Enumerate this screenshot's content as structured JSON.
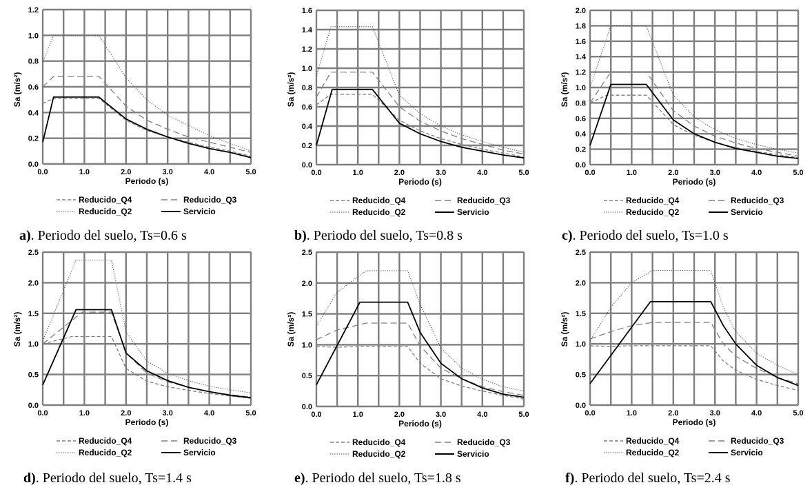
{
  "figure": {
    "xlabel": "Periodo (s)",
    "ylabel": "Sa (m/s²)",
    "caption_middle": "Periodo del suelo, Ts=",
    "caption_unit": " s"
  },
  "styles": {
    "grid_color": "#7f7f7f",
    "series": {
      "Reducido_Q4": {
        "color": "#7f7f7f",
        "dash": "5,3",
        "width": 1.3
      },
      "Reducido_Q3": {
        "color": "#7f7f7f",
        "dash": "9,5",
        "width": 1.3
      },
      "Reducido_Q2": {
        "color": "#555555",
        "dash": "1.2,2",
        "width": 1.1
      },
      "Servicio": {
        "color": "#000000",
        "dash": "",
        "width": 1.8
      }
    }
  },
  "chart_data": [
    {
      "type": "line",
      "panel": "a)",
      "ts": "0.6",
      "xlabel": "Periodo (s)",
      "ylabel": "Sa (m/s²)",
      "xlim": [
        0,
        5
      ],
      "ylim": [
        0,
        1.2
      ],
      "xticks": [
        "0.0",
        "1.0",
        "2.0",
        "3.0",
        "4.0",
        "5.0"
      ],
      "yticks": [
        "0.0",
        "0.2",
        "0.4",
        "0.6",
        "0.8",
        "1.0",
        "1.2"
      ],
      "ytick_values": [
        0,
        0.2,
        0.4,
        0.6,
        0.8,
        1.0,
        1.2
      ],
      "grid": true,
      "legend": "bottom",
      "series": [
        {
          "name": "Reducido_Q4",
          "x": [
            0,
            0.26,
            1.35,
            2.0,
            2.5,
            3.0,
            3.5,
            4.0,
            4.5,
            5.0
          ],
          "y": [
            0.47,
            0.51,
            0.51,
            0.34,
            0.26,
            0.21,
            0.17,
            0.13,
            0.1,
            0.06
          ]
        },
        {
          "name": "Reducido_Q3",
          "x": [
            0,
            0.26,
            1.35,
            2.0,
            2.5,
            3.0,
            3.5,
            4.0,
            4.5,
            5.0
          ],
          "y": [
            0.6,
            0.68,
            0.68,
            0.45,
            0.34,
            0.27,
            0.21,
            0.17,
            0.13,
            0.09
          ]
        },
        {
          "name": "Reducido_Q2",
          "x": [
            0,
            0.26,
            1.35,
            2.0,
            2.5,
            3.0,
            3.5,
            4.0,
            4.5,
            5.0
          ],
          "y": [
            0.79,
            1.0,
            1.0,
            0.67,
            0.5,
            0.38,
            0.3,
            0.22,
            0.16,
            0.1
          ]
        },
        {
          "name": "Servicio",
          "x": [
            0,
            0.26,
            1.35,
            2.0,
            2.5,
            3.0,
            3.5,
            4.0,
            4.5,
            5.0
          ],
          "y": [
            0.17,
            0.52,
            0.52,
            0.35,
            0.27,
            0.21,
            0.16,
            0.12,
            0.09,
            0.05
          ]
        }
      ]
    },
    {
      "type": "line",
      "panel": "b)",
      "ts": "0.8",
      "xlabel": "Periodo (s)",
      "ylabel": "Sa (m/s²)",
      "xlim": [
        0,
        5
      ],
      "ylim": [
        0,
        1.6
      ],
      "xticks": [
        "0.0",
        "1.0",
        "2.0",
        "3.0",
        "4.0",
        "5.0"
      ],
      "yticks": [
        "0.0",
        "0.2",
        "0.4",
        "0.6",
        "0.8",
        "1.0",
        "1.2",
        "1.4",
        "1.6"
      ],
      "ytick_values": [
        0,
        0.2,
        0.4,
        0.6,
        0.8,
        1.0,
        1.2,
        1.4,
        1.6
      ],
      "grid": true,
      "legend": "bottom",
      "series": [
        {
          "name": "Reducido_Q4",
          "x": [
            0,
            0.35,
            1.35,
            2.0,
            2.5,
            3.0,
            3.5,
            4.0,
            4.5,
            5.0
          ],
          "y": [
            0.62,
            0.73,
            0.73,
            0.46,
            0.35,
            0.27,
            0.21,
            0.16,
            0.12,
            0.08
          ]
        },
        {
          "name": "Reducido_Q3",
          "x": [
            0,
            0.35,
            1.35,
            2.0,
            2.5,
            3.0,
            3.5,
            4.0,
            4.5,
            5.0
          ],
          "y": [
            0.7,
            0.96,
            0.96,
            0.6,
            0.45,
            0.35,
            0.27,
            0.21,
            0.15,
            0.11
          ]
        },
        {
          "name": "Reducido_Q2",
          "x": [
            0,
            0.35,
            1.35,
            2.0,
            2.5,
            3.0,
            3.5,
            4.0,
            4.5,
            5.0
          ],
          "y": [
            0.92,
            1.43,
            1.43,
            0.72,
            0.53,
            0.4,
            0.31,
            0.24,
            0.18,
            0.13
          ]
        },
        {
          "name": "Servicio",
          "x": [
            0,
            0.38,
            1.35,
            2.0,
            2.5,
            3.0,
            3.5,
            4.0,
            4.5,
            5.0
          ],
          "y": [
            0.2,
            0.78,
            0.78,
            0.43,
            0.32,
            0.24,
            0.18,
            0.14,
            0.1,
            0.07
          ]
        }
      ]
    },
    {
      "type": "line",
      "panel": "c)",
      "ts": "1.0",
      "xlabel": "Periodo (s)",
      "ylabel": "Sa (m/s²)",
      "xlim": [
        0,
        5
      ],
      "ylim": [
        0,
        2.0
      ],
      "xticks": [
        "0.0",
        "1.0",
        "2.0",
        "3.0",
        "4.0",
        "5.0"
      ],
      "yticks": [
        "0.0",
        "0.2",
        "0.4",
        "0.6",
        "0.8",
        "1.0",
        "1.2",
        "1.4",
        "1.6",
        "1.8",
        "2.0"
      ],
      "ytick_values": [
        0,
        0.2,
        0.4,
        0.6,
        0.8,
        1.0,
        1.2,
        1.4,
        1.6,
        1.8,
        2.0
      ],
      "grid": true,
      "legend": "bottom",
      "series": [
        {
          "name": "Reducido_Q4",
          "x": [
            0,
            0.4,
            1.35,
            2.0,
            2.5,
            3.0,
            3.5,
            4.0,
            4.5,
            5.0
          ],
          "y": [
            0.8,
            0.9,
            0.9,
            0.52,
            0.38,
            0.29,
            0.22,
            0.17,
            0.13,
            0.09
          ]
        },
        {
          "name": "Reducido_Q3",
          "x": [
            0,
            0.5,
            1.35,
            2.0,
            2.5,
            3.0,
            3.5,
            4.0,
            4.5,
            5.0
          ],
          "y": [
            0.8,
            1.2,
            1.2,
            0.7,
            0.5,
            0.37,
            0.28,
            0.21,
            0.16,
            0.11
          ]
        },
        {
          "name": "Reducido_Q2",
          "x": [
            0,
            0.5,
            1.35,
            2.0,
            2.5,
            3.0,
            3.5,
            4.0,
            4.5,
            5.0
          ],
          "y": [
            1.0,
            1.8,
            1.8,
            0.9,
            0.62,
            0.45,
            0.34,
            0.26,
            0.2,
            0.15
          ]
        },
        {
          "name": "Servicio",
          "x": [
            0,
            0.5,
            1.35,
            2.0,
            2.5,
            3.0,
            3.5,
            4.0,
            4.5,
            5.0
          ],
          "y": [
            0.25,
            1.04,
            1.04,
            0.58,
            0.4,
            0.29,
            0.21,
            0.16,
            0.11,
            0.08
          ]
        }
      ]
    },
    {
      "type": "line",
      "panel": "d)",
      "ts": "1.4",
      "xlabel": "Periodo (s)",
      "ylabel": "Sa (m/s²)",
      "xlim": [
        0,
        5
      ],
      "ylim": [
        0,
        2.5
      ],
      "xticks": [
        "0.0",
        "1.0",
        "2.0",
        "3.0",
        "4.0",
        "5.0"
      ],
      "yticks": [
        "0.0",
        "0.5",
        "1.0",
        "1.5",
        "2.0",
        "2.5"
      ],
      "ytick_values": [
        0,
        0.5,
        1.0,
        1.5,
        2.0,
        2.5
      ],
      "grid": true,
      "legend": "bottom",
      "series": [
        {
          "name": "Reducido_Q4",
          "x": [
            0,
            0.7,
            1.65,
            2.0,
            2.5,
            3.0,
            3.5,
            4.0,
            4.5,
            5.0
          ],
          "y": [
            1.0,
            1.12,
            1.12,
            0.6,
            0.39,
            0.3,
            0.24,
            0.19,
            0.15,
            0.11
          ]
        },
        {
          "name": "Reducido_Q3",
          "x": [
            0,
            0.95,
            1.65,
            2.0,
            2.5,
            3.0,
            3.5,
            4.0,
            4.5,
            5.0
          ],
          "y": [
            1.0,
            1.52,
            1.52,
            0.85,
            0.52,
            0.38,
            0.29,
            0.22,
            0.17,
            0.13
          ]
        },
        {
          "name": "Reducido_Q2",
          "x": [
            0,
            0.8,
            1.65,
            2.0,
            2.5,
            3.0,
            3.5,
            4.0,
            4.5,
            5.0
          ],
          "y": [
            1.05,
            2.37,
            2.37,
            1.2,
            0.72,
            0.52,
            0.4,
            0.31,
            0.25,
            0.2
          ]
        },
        {
          "name": "Servicio",
          "x": [
            0,
            0.8,
            1.65,
            2.0,
            2.5,
            3.0,
            3.5,
            4.0,
            4.5,
            5.0
          ],
          "y": [
            0.33,
            1.56,
            1.56,
            0.85,
            0.56,
            0.4,
            0.29,
            0.22,
            0.16,
            0.12
          ]
        }
      ]
    },
    {
      "type": "line",
      "panel": "e)",
      "ts": "1.8",
      "xlabel": "Periodo (s)",
      "ylabel": "Sa (m/s²)",
      "xlim": [
        0,
        5
      ],
      "ylim": [
        0,
        2.5
      ],
      "xticks": [
        "0.0",
        "1.0",
        "2.0",
        "3.0",
        "4.0",
        "5.0"
      ],
      "yticks": [
        "0.0",
        "0.5",
        "1.0",
        "1.5",
        "2.0",
        "2.5"
      ],
      "ytick_values": [
        0,
        0.5,
        1.0,
        1.5,
        2.0,
        2.5
      ],
      "grid": true,
      "legend": "bottom",
      "series": [
        {
          "name": "Reducido_Q4",
          "x": [
            0,
            0.5,
            1.0,
            2.2,
            2.5,
            3.0,
            3.5,
            4.0,
            4.5,
            5.0
          ],
          "y": [
            0.97,
            0.96,
            0.97,
            0.97,
            0.7,
            0.45,
            0.33,
            0.25,
            0.18,
            0.12
          ]
        },
        {
          "name": "Reducido_Q3",
          "x": [
            0,
            0.5,
            1.2,
            2.2,
            2.5,
            3.0,
            3.5,
            4.0,
            4.5,
            5.0
          ],
          "y": [
            1.08,
            1.24,
            1.35,
            1.35,
            0.98,
            0.62,
            0.45,
            0.32,
            0.24,
            0.18
          ]
        },
        {
          "name": "Reducido_Q2",
          "x": [
            0,
            0.5,
            1.2,
            2.2,
            2.5,
            3.0,
            3.5,
            4.0,
            4.5,
            5.0
          ],
          "y": [
            1.3,
            1.85,
            2.2,
            2.2,
            1.65,
            0.95,
            0.62,
            0.44,
            0.32,
            0.25
          ]
        },
        {
          "name": "Servicio",
          "x": [
            0,
            1.05,
            2.2,
            2.5,
            3.0,
            3.5,
            4.0,
            4.5,
            5.0
          ],
          "y": [
            0.35,
            1.69,
            1.69,
            1.2,
            0.7,
            0.45,
            0.3,
            0.2,
            0.15
          ]
        }
      ]
    },
    {
      "type": "line",
      "panel": "f)",
      "ts": "2.4",
      "xlabel": "Periodo (s)",
      "ylabel": "Sa (m/s²)",
      "xlim": [
        0,
        5
      ],
      "ylim": [
        0,
        2.5
      ],
      "xticks": [
        "0.0",
        "1.0",
        "2.0",
        "3.0",
        "4.0",
        "5.0"
      ],
      "yticks": [
        "0.0",
        "0.5",
        "1.0",
        "1.5",
        "2.0",
        "2.5"
      ],
      "ytick_values": [
        0,
        0.5,
        1.0,
        1.5,
        2.0,
        2.5
      ],
      "grid": true,
      "legend": "bottom",
      "series": [
        {
          "name": "Reducido_Q4",
          "x": [
            0,
            0.5,
            1.0,
            2.9,
            3.2,
            3.5,
            4.0,
            4.5,
            5.0
          ],
          "y": [
            0.97,
            0.96,
            0.97,
            0.97,
            0.72,
            0.57,
            0.42,
            0.32,
            0.24
          ]
        },
        {
          "name": "Reducido_Q3",
          "x": [
            0,
            0.5,
            1.0,
            1.5,
            2.9,
            3.2,
            3.5,
            4.0,
            4.5,
            5.0
          ],
          "y": [
            1.08,
            1.2,
            1.3,
            1.35,
            1.35,
            1.0,
            0.8,
            0.6,
            0.45,
            0.35
          ]
        },
        {
          "name": "Reducido_Q2",
          "x": [
            0,
            0.5,
            1.0,
            1.5,
            2.9,
            3.2,
            3.5,
            4.0,
            4.5,
            5.0
          ],
          "y": [
            1.05,
            1.6,
            2.0,
            2.2,
            2.2,
            1.6,
            1.2,
            0.85,
            0.65,
            0.5
          ]
        },
        {
          "name": "Servicio",
          "x": [
            0,
            1.45,
            2.9,
            3.2,
            3.5,
            4.0,
            4.5,
            5.0
          ],
          "y": [
            0.35,
            1.69,
            1.69,
            1.3,
            1.0,
            0.65,
            0.45,
            0.32
          ]
        }
      ]
    }
  ],
  "legend_order": [
    "Reducido_Q4",
    "Reducido_Q3",
    "Reducido_Q2",
    "Servicio"
  ]
}
